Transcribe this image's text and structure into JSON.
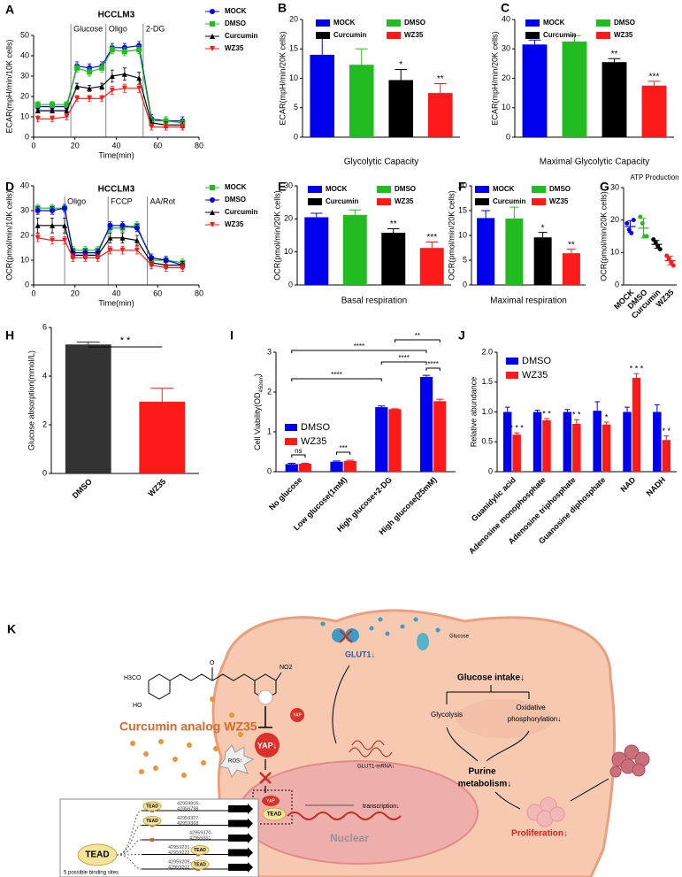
{
  "chart_data": [
    {
      "panel": "A",
      "type": "line",
      "title": "HCCLM3",
      "xlabel": "Time(min)",
      "ylabel": "ECAR(mpH/min/10K cells)",
      "x": [
        2,
        9,
        16,
        21,
        27,
        33,
        38,
        44,
        51,
        57,
        64,
        72
      ],
      "xlim": [
        0,
        80
      ],
      "xticks": [
        0,
        20,
        40,
        60,
        80
      ],
      "ylim": [
        0,
        50
      ],
      "yticks": [
        0,
        10,
        20,
        30,
        40,
        50
      ],
      "annotations": [
        {
          "text": "Glucose",
          "x": 18
        },
        {
          "text": "Oligo",
          "x": 35
        },
        {
          "text": "2-DG",
          "x": 53
        }
      ],
      "series": [
        {
          "name": "MOCK",
          "color": "#0000ee",
          "marker": "circle",
          "values": [
            15,
            15,
            15,
            35,
            34,
            35,
            44,
            44,
            45,
            9,
            8,
            8
          ],
          "errors": [
            1.5,
            1.5,
            1.5,
            2,
            2,
            2,
            2,
            2,
            2,
            2,
            2,
            2
          ]
        },
        {
          "name": "DMSO",
          "color": "#22bb22",
          "marker": "square",
          "values": [
            16,
            16,
            16,
            34,
            32,
            34,
            43,
            42,
            43,
            8,
            8,
            7
          ],
          "errors": [
            1.5,
            1.5,
            1.5,
            2,
            2,
            2,
            2,
            2,
            2,
            2,
            2,
            2
          ]
        },
        {
          "name": "Curcumin",
          "color": "#000000",
          "marker": "triangle",
          "values": [
            13,
            13,
            13,
            25,
            24,
            25,
            30,
            31,
            29,
            7,
            6,
            6
          ],
          "errors": [
            1,
            1,
            1,
            1.5,
            1.5,
            1.5,
            3,
            3,
            3,
            1.5,
            1.5,
            1.5
          ]
        },
        {
          "name": "WZ35",
          "color": "#ff1a1a",
          "marker": "triangle-down",
          "values": [
            9,
            9,
            10,
            19,
            19,
            19,
            23,
            24,
            24,
            5,
            5,
            5
          ],
          "errors": [
            1.5,
            1.5,
            1.5,
            1.5,
            1.5,
            1.5,
            2,
            2,
            2,
            1.5,
            1.5,
            1.5
          ]
        }
      ]
    },
    {
      "panel": "B",
      "type": "bar",
      "xlabel": "Glycolytic Capacity",
      "ylabel": "ECAR(mpH/min/20K cells)",
      "legend": true,
      "categories": [
        "MOCK",
        "DMSO",
        "Curcumin",
        "WZ35"
      ],
      "colors": [
        "#0000ee",
        "#22bb22",
        "#000000",
        "#ff1a1a"
      ],
      "values": [
        14,
        12.3,
        9.7,
        7.5
      ],
      "errors": [
        3.5,
        2.7,
        1.8,
        1.6
      ],
      "significance": [
        null,
        null,
        "*",
        "**"
      ],
      "ylim": [
        0,
        20
      ],
      "yticks": [
        0,
        5,
        10,
        15,
        20
      ]
    },
    {
      "panel": "C",
      "type": "bar",
      "xlabel": "Maximal Glycolytic Capacity",
      "ylabel": "ECAR(mpH/min/20K cells)",
      "legend": true,
      "categories": [
        "MOCK",
        "DMSO",
        "Curcumin",
        "WZ35"
      ],
      "colors": [
        "#0000ee",
        "#22bb22",
        "#000000",
        "#ff1a1a"
      ],
      "values": [
        31.5,
        32.5,
        25.5,
        17.5
      ],
      "errors": [
        1.5,
        2,
        1.2,
        1.5
      ],
      "significance": [
        null,
        null,
        "**",
        "***"
      ],
      "ylim": [
        0,
        40
      ],
      "yticks": [
        0,
        10,
        20,
        30,
        40
      ]
    },
    {
      "panel": "D",
      "type": "line",
      "title": "HCCLM3",
      "xlabel": "Time(min)",
      "ylabel": "OCR(pmol/min/10K cells)",
      "x": [
        2,
        9,
        15,
        19,
        25,
        31,
        37,
        43,
        50,
        57,
        64,
        72
      ],
      "xlim": [
        0,
        80
      ],
      "xticks": [
        0,
        20,
        40,
        60,
        80
      ],
      "ylim": [
        0,
        40
      ],
      "yticks": [
        0,
        10,
        20,
        30,
        40
      ],
      "annotations": [
        {
          "text": "Oligo",
          "x": 15
        },
        {
          "text": "FCCP",
          "x": 36
        },
        {
          "text": "AA/Rot",
          "x": 55
        }
      ],
      "series": [
        {
          "name": "MOCK",
          "color": "#22bb22",
          "marker": "square",
          "values": [
            31,
            31,
            31,
            14,
            14,
            14,
            23,
            23,
            24,
            10,
            10,
            9
          ],
          "errors": [
            1.5,
            1.5,
            1.5,
            1.5,
            1.5,
            1.5,
            1.5,
            1.5,
            1.5,
            1.5,
            1.5,
            1.5
          ]
        },
        {
          "name": "DMSO",
          "color": "#0000ee",
          "marker": "circle",
          "values": [
            30,
            30,
            31,
            13,
            13,
            13,
            24,
            24,
            23,
            11,
            10,
            8
          ],
          "errors": [
            1.5,
            1.5,
            1.5,
            1.5,
            1.5,
            1.5,
            1.5,
            1.5,
            1.5,
            1.5,
            1.5,
            1.5
          ]
        },
        {
          "name": "Curcumin",
          "color": "#000000",
          "marker": "triangle",
          "values": [
            24,
            24,
            24,
            12,
            12,
            12,
            19,
            19,
            18,
            9,
            8,
            8
          ],
          "errors": [
            3,
            3,
            3,
            1.5,
            1.5,
            1.5,
            2,
            2,
            2,
            1.5,
            1.5,
            1.5
          ]
        },
        {
          "name": "WZ35",
          "color": "#ff1a1a",
          "marker": "triangle-down",
          "values": [
            19,
            18,
            18,
            11,
            11,
            11,
            14,
            14,
            14,
            8,
            7,
            7
          ],
          "errors": [
            1.5,
            1.5,
            1.5,
            1.5,
            1.5,
            1.5,
            1.5,
            1.5,
            1.5,
            1.5,
            1.5,
            1.5
          ]
        }
      ]
    },
    {
      "panel": "E",
      "type": "bar",
      "xlabel": "Basal respiration",
      "ylabel": "OCR(pmol/min/20K cells)",
      "legend": true,
      "categories": [
        "MOCK",
        "DMSO",
        "Curcumin",
        "WZ35"
      ],
      "colors": [
        "#0000ee",
        "#22bb22",
        "#000000",
        "#ff1a1a"
      ],
      "values": [
        20.5,
        21.2,
        15.8,
        11.2
      ],
      "errors": [
        1.2,
        1.5,
        1.2,
        1.8
      ],
      "significance": [
        null,
        null,
        "**",
        "***"
      ],
      "ylim": [
        0,
        30
      ],
      "yticks": [
        0,
        10,
        20,
        30
      ]
    },
    {
      "panel": "F",
      "type": "bar",
      "xlabel": "Maximal respiration",
      "ylabel": "OCR(pmol/min/20K cells)",
      "legend": true,
      "categories": [
        "MOCK",
        "DMSO",
        "Curcumin",
        "WZ35"
      ],
      "colors": [
        "#0000ee",
        "#22bb22",
        "#000000",
        "#ff1a1a"
      ],
      "values": [
        13.5,
        13.4,
        9.6,
        6.4
      ],
      "errors": [
        1.5,
        2.3,
        1,
        0.8
      ],
      "significance": [
        null,
        null,
        "*",
        "**"
      ],
      "ylim": [
        0,
        20
      ],
      "yticks": [
        0,
        5,
        10,
        15,
        20
      ]
    },
    {
      "panel": "G",
      "type": "dot",
      "title": "ATP Production",
      "ylabel": "OCR(pmol/min/20K cells)",
      "categories": [
        "MOCK",
        "DMSO",
        "Curcumin",
        "WZ35"
      ],
      "colors": [
        "#0000ee",
        "#22bb22",
        "#000000",
        "#ff1a1a"
      ],
      "points": [
        [
          19,
          17,
          16,
          20
        ],
        [
          21,
          19,
          15,
          15
        ],
        [
          14,
          13,
          12,
          11
        ],
        [
          9,
          8,
          7,
          6
        ]
      ],
      "values": [
        18,
        17.5,
        12.5,
        7.5
      ],
      "errors": [
        1.8,
        3,
        1.2,
        1.3
      ],
      "ylim": [
        0,
        30
      ],
      "yticks": [
        0,
        10,
        20,
        30
      ]
    },
    {
      "panel": "H",
      "type": "bar",
      "ylabel": "Glucose  absorption(mmol/L)",
      "legend": false,
      "categories": [
        "DMSO",
        "WZ35"
      ],
      "colors": [
        "#333333",
        "#ff1a1a"
      ],
      "values": [
        5.3,
        2.95
      ],
      "errors": [
        0.1,
        0.55
      ],
      "comparisons": [
        {
          "from": 0,
          "to": 1,
          "label": "* *"
        }
      ],
      "ylim": [
        0,
        6
      ],
      "yticks": [
        0,
        2,
        4,
        6
      ]
    },
    {
      "panel": "I",
      "type": "grouped_bar",
      "ylabel": "Cell Viability(OD",
      "ylabel_subscript": "450nm",
      "ylabel_suffix": ")",
      "categories": [
        "No glucose",
        "Low glucose(1mM)",
        "High glucose+2-DG",
        "High glucose(25mM)"
      ],
      "series": [
        {
          "name": "DMSO",
          "color": "#0000ee",
          "values": [
            0.19,
            0.25,
            1.62,
            2.38
          ],
          "errors": [
            0.02,
            0.02,
            0.03,
            0.04
          ]
        },
        {
          "name": "WZ35",
          "color": "#ff1a1a",
          "values": [
            0.2,
            0.27,
            1.57,
            1.77
          ],
          "errors": [
            0.01,
            0.02,
            0.01,
            0.05
          ]
        }
      ],
      "comparisons": [
        {
          "from": [
            0,
            0
          ],
          "to": [
            0,
            1
          ],
          "label": "ns"
        },
        {
          "from": [
            1,
            0
          ],
          "to": [
            1,
            1
          ],
          "label": "***"
        },
        {
          "from": [
            0,
            0
          ],
          "to": [
            2,
            0
          ],
          "label": "****"
        },
        {
          "from": [
            2,
            0
          ],
          "to": [
            3,
            0
          ],
          "label": "****"
        },
        {
          "from": [
            3,
            0
          ],
          "to": [
            3,
            1
          ],
          "label": "****"
        },
        {
          "from": [
            0,
            0
          ],
          "to": [
            3,
            0
          ],
          "label": "****"
        },
        {
          "from": [
            2,
            1
          ],
          "to": [
            3,
            1
          ],
          "label": "**"
        }
      ],
      "ylim": [
        0,
        3
      ],
      "yticks": [
        0,
        1,
        2,
        3
      ]
    },
    {
      "panel": "J",
      "type": "grouped_bar",
      "ylabel": "Relative abundance",
      "categories": [
        "Guanidylic acid",
        "Adenosine monophosphate",
        "Adenosine triphosphate",
        "Guanosine diphosphate",
        "NAD",
        "NADH"
      ],
      "series": [
        {
          "name": "DMSO",
          "color": "#0000ee",
          "values": [
            1,
            1,
            1,
            1.02,
            1,
            1
          ],
          "errors": [
            0.08,
            0.03,
            0.04,
            0.15,
            0.08,
            0.12
          ]
        },
        {
          "name": "WZ35",
          "color": "#ff1a1a",
          "values": [
            0.62,
            0.86,
            0.8,
            0.79,
            1.57,
            0.53
          ],
          "errors": [
            0.03,
            0.03,
            0.07,
            0.04,
            0.07,
            0.07
          ],
          "significance": [
            "* * *",
            "* *",
            "* *",
            "*",
            "* * *",
            "* *"
          ]
        }
      ],
      "ylim": [
        0,
        2
      ],
      "yticks": [
        0,
        0.5,
        {
          "value": 1,
          "label": "1.0"
        },
        1.5,
        {
          "value": 2,
          "label": "2.0"
        }
      ]
    }
  ],
  "diagram": {
    "panel": "K",
    "chemistry": [
      "H3CO",
      "HO",
      "O",
      "NO2"
    ],
    "compound": "Curcumin analog WZ35",
    "ros": "ROS↑",
    "yap_down": "YAP↓",
    "yap": "YAP",
    "glut1": "GLUT1↓",
    "glucose": "Glucose",
    "glucose_intake": "Glucose intake↓",
    "glycolysis": "Glycolysis",
    "oxphos": [
      "Oxidative",
      "phosphorylation↓"
    ],
    "mrna": "GLUT1-mRNA↓",
    "transcription": "transcription↓",
    "nuclear_yap": "YAP",
    "nuclear_tead": "TEAD",
    "nucleus": "Nuclear",
    "purine": [
      "Purine",
      "metabolism↓"
    ],
    "proliferation": "Proliferation↓",
    "inset": {
      "tead": "TEAD",
      "sites": [
        {
          "tead": "TEAD",
          "range": [
            "42959805-",
            "42959798"
          ]
        },
        {
          "tead": "TEAD",
          "range": [
            "42959377-",
            "42959368"
          ]
        },
        {
          "range": [
            "42959370-",
            "42959361"
          ]
        },
        {
          "tead": "TEAD",
          "range": [
            "42959231-",
            "42959222"
          ]
        },
        {
          "tead": "TEAD",
          "range": [
            "42959209-",
            "42959202"
          ]
        }
      ],
      "footnote": "5 possible binding sites"
    }
  }
}
